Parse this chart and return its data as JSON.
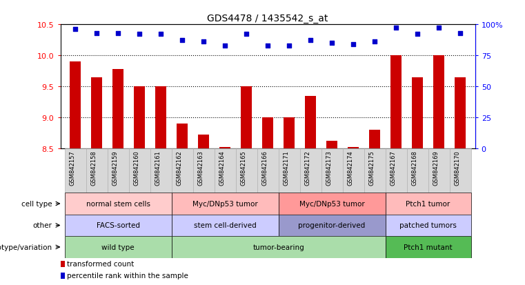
{
  "title": "GDS4478 / 1435542_s_at",
  "samples": [
    "GSM842157",
    "GSM842158",
    "GSM842159",
    "GSM842160",
    "GSM842161",
    "GSM842162",
    "GSM842163",
    "GSM842164",
    "GSM842165",
    "GSM842166",
    "GSM842171",
    "GSM842172",
    "GSM842173",
    "GSM842174",
    "GSM842175",
    "GSM842167",
    "GSM842168",
    "GSM842169",
    "GSM842170"
  ],
  "bar_values": [
    9.9,
    9.65,
    9.78,
    9.5,
    9.5,
    8.9,
    8.72,
    8.52,
    9.5,
    9.0,
    9.0,
    9.35,
    8.62,
    8.52,
    8.8,
    10.0,
    9.65,
    10.0,
    9.65
  ],
  "percentile_values": [
    96,
    93,
    93,
    92,
    92,
    87,
    86,
    83,
    92,
    83,
    83,
    87,
    85,
    84,
    86,
    97,
    92,
    97,
    93
  ],
  "ylim_left": [
    8.5,
    10.5
  ],
  "ylim_right": [
    0,
    100
  ],
  "yticks_left": [
    8.5,
    9.0,
    9.5,
    10.0,
    10.5
  ],
  "yticks_right": [
    0,
    25,
    50,
    75,
    100
  ],
  "bar_color": "#cc0000",
  "dot_color": "#0000cc",
  "bar_bottom": 8.5,
  "row_labels": [
    "genotype/variation",
    "other",
    "cell type"
  ],
  "groups": [
    {
      "label": "wild type",
      "start": 0,
      "end": 4,
      "color": "#aaddaa",
      "row": 0
    },
    {
      "label": "tumor-bearing",
      "start": 5,
      "end": 14,
      "color": "#aaddaa",
      "row": 0
    },
    {
      "label": "Ptch1 mutant",
      "start": 15,
      "end": 18,
      "color": "#55bb55",
      "row": 0
    },
    {
      "label": "FACS-sorted",
      "start": 0,
      "end": 4,
      "color": "#ccccff",
      "row": 1
    },
    {
      "label": "stem cell-derived",
      "start": 5,
      "end": 9,
      "color": "#ccccff",
      "row": 1
    },
    {
      "label": "progenitor-derived",
      "start": 10,
      "end": 14,
      "color": "#9999cc",
      "row": 1
    },
    {
      "label": "patched tumors",
      "start": 15,
      "end": 18,
      "color": "#ccccff",
      "row": 1
    },
    {
      "label": "normal stem cells",
      "start": 0,
      "end": 4,
      "color": "#ffcccc",
      "row": 2
    },
    {
      "label": "Myc/DNp53 tumor",
      "start": 5,
      "end": 9,
      "color": "#ffbbbb",
      "row": 2
    },
    {
      "label": "Myc/DNp53 tumor",
      "start": 10,
      "end": 14,
      "color": "#ff9999",
      "row": 2
    },
    {
      "label": "Ptch1 tumor",
      "start": 15,
      "end": 18,
      "color": "#ffbbbb",
      "row": 2
    }
  ],
  "legend": [
    {
      "label": "transformed count",
      "color": "#cc0000"
    },
    {
      "label": "percentile rank within the sample",
      "color": "#0000cc"
    }
  ]
}
